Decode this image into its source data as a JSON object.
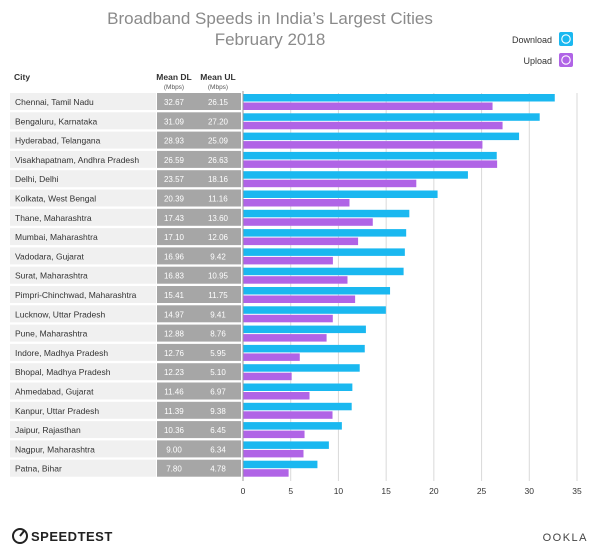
{
  "chart_data": {
    "type": "bar",
    "title_line1": "Broadband Speeds in India’s Largest Cities",
    "title_line2": "February 2018",
    "col_city": "City",
    "col_dl": "Mean DL",
    "col_dl_unit": "(Mbps)",
    "col_ul": "Mean UL",
    "col_ul_unit": "(Mbps)",
    "categories": [
      "Chennai, Tamil Nadu",
      "Bengaluru, Karnataka",
      "Hyderabad, Telangana",
      "Visakhapatnam, Andhra Pradesh",
      "Delhi, Delhi",
      "Kolkata, West Bengal",
      "Thane, Maharashtra",
      "Mumbai, Maharashtra",
      "Vadodara, Gujarat",
      "Surat, Maharashtra",
      "Pimpri-Chinchwad, Maharashtra",
      "Lucknow, Uttar Pradesh",
      "Pune, Maharashtra",
      "Indore, Madhya Pradesh",
      "Bhopal, Madhya Pradesh",
      "Ahmedabad, Gujarat",
      "Kanpur, Uttar Pradesh",
      "Jaipur, Rajasthan",
      "Nagpur, Maharashtra",
      "Patna, Bihar"
    ],
    "series": [
      {
        "name": "Download",
        "color": "#1ab8f0",
        "values": [
          32.67,
          31.09,
          28.93,
          26.59,
          23.57,
          20.39,
          17.43,
          17.1,
          16.96,
          16.83,
          15.41,
          14.97,
          12.88,
          12.76,
          12.23,
          11.46,
          11.39,
          10.36,
          9.0,
          7.8
        ],
        "labels": [
          "32.67",
          "31.09",
          "28.93",
          "26.59",
          "23.57",
          "20.39",
          "17.43",
          "17.10",
          "16.96",
          "16.83",
          "15.41",
          "14.97",
          "12.88",
          "12.76",
          "12.23",
          "11.46",
          "11.39",
          "10.36",
          "9.00",
          "7.80"
        ]
      },
      {
        "name": "Upload",
        "color": "#b064e6",
        "values": [
          26.15,
          27.2,
          25.09,
          26.63,
          18.16,
          11.16,
          13.6,
          12.06,
          9.42,
          10.95,
          11.75,
          9.41,
          8.76,
          5.95,
          5.1,
          6.97,
          9.38,
          6.45,
          6.34,
          4.78
        ],
        "labels": [
          "26.15",
          "27.20",
          "25.09",
          "26.63",
          "18.16",
          "11.16",
          "13.60",
          "12.06",
          "9.42",
          "10.95",
          "11.75",
          "9.41",
          "8.76",
          "5.95",
          "5.10",
          "6.97",
          "9.38",
          "6.45",
          "6.34",
          "4.78"
        ]
      }
    ],
    "xlim": [
      0,
      35
    ],
    "xticks": [
      0,
      5,
      10,
      15,
      20,
      25,
      30,
      35
    ],
    "grid": true,
    "legend": "top-right"
  },
  "branding": {
    "left": "SPEEDTEST",
    "right": "OOKLA"
  },
  "colors": {
    "label_cell": "#f0f0f0",
    "value_cell": "#a6a6a6",
    "grid": "#d9d9d9",
    "title": "#8a8a8a"
  }
}
